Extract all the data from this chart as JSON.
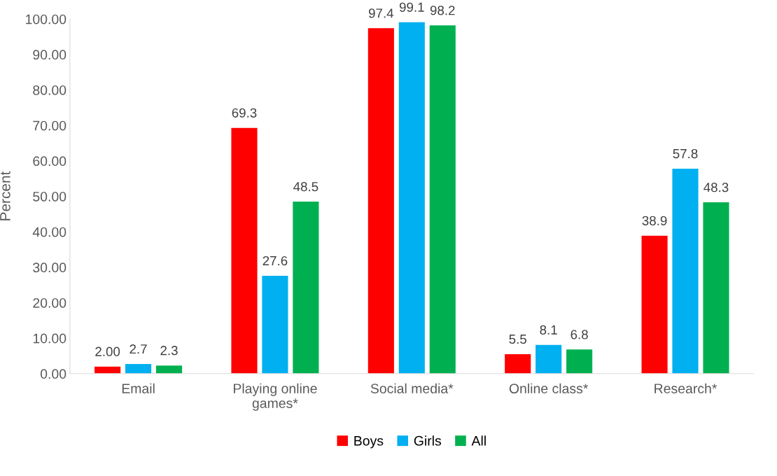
{
  "chart_data": {
    "type": "bar",
    "ylabel": "Percent",
    "categories": [
      "Email",
      "Playing online\ngames*",
      "Social media*",
      "Online class*",
      "Research*"
    ],
    "series": [
      {
        "name": "Boys",
        "color": "#ff0000",
        "values": [
          2.0,
          69.3,
          97.4,
          5.5,
          38.9
        ],
        "value_labels": [
          "2.00",
          "69.3",
          "97.4",
          "5.5",
          "38.9"
        ]
      },
      {
        "name": "Girls",
        "color": "#00b0f0",
        "values": [
          2.7,
          27.6,
          99.1,
          8.1,
          57.8
        ],
        "value_labels": [
          "2.7",
          "27.6",
          "99.1",
          "8.1",
          "57.8"
        ]
      },
      {
        "name": "All",
        "color": "#00b050",
        "values": [
          2.3,
          48.5,
          98.2,
          6.8,
          48.3
        ],
        "value_labels": [
          "2.3",
          "48.5",
          "98.2",
          "6.8",
          "48.3"
        ]
      }
    ],
    "ylim": [
      0,
      100
    ],
    "yticks": [
      {
        "value": 0,
        "label": "0.00"
      },
      {
        "value": 10,
        "label": "10.00"
      },
      {
        "value": 20,
        "label": "20.00"
      },
      {
        "value": 30,
        "label": "30.00"
      },
      {
        "value": 40,
        "label": "40.00"
      },
      {
        "value": 50,
        "label": "50.00"
      },
      {
        "value": 60,
        "label": "60.00"
      },
      {
        "value": 70,
        "label": "70.00"
      },
      {
        "value": 80,
        "label": "80.00"
      },
      {
        "value": 90,
        "label": "90.00"
      },
      {
        "value": 100,
        "label": "100.00"
      }
    ],
    "grid": false,
    "legend": "bottom"
  }
}
